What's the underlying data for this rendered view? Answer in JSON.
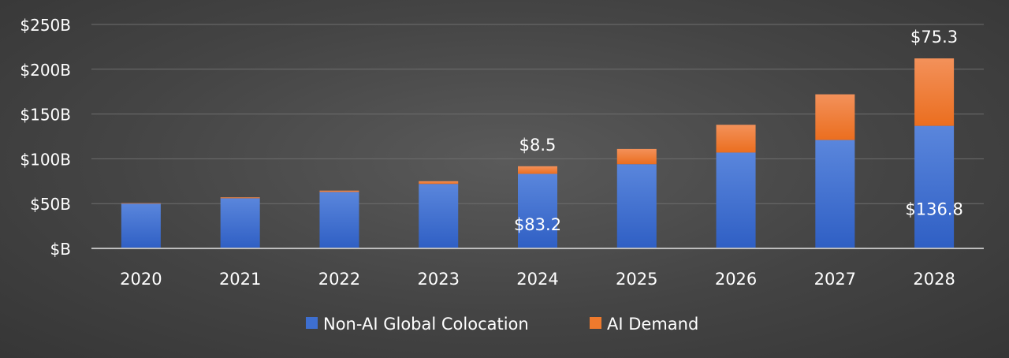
{
  "chart_data": {
    "type": "bar",
    "stacked": true,
    "categories": [
      "2020",
      "2021",
      "2022",
      "2023",
      "2024",
      "2025",
      "2026",
      "2027",
      "2028"
    ],
    "series": [
      {
        "name": "Non-AI Global Colocation",
        "color": "#3e6fd0",
        "values": [
          50,
          56,
          63,
          72,
          83.2,
          94,
          107,
          121,
          136.8
        ]
      },
      {
        "name": "AI Demand",
        "color": "#ef7a2d",
        "values": [
          0.5,
          1,
          1.5,
          3,
          8.5,
          17,
          31,
          51,
          75.3
        ]
      }
    ],
    "ylim": [
      0,
      250
    ],
    "yticks": [
      0,
      50,
      100,
      150,
      200,
      250
    ],
    "ytick_labels": [
      "$B",
      "$50B",
      "$100B",
      "$150B",
      "$200B",
      "$250B"
    ],
    "grid": true,
    "legend_position": "bottom",
    "data_labels": [
      {
        "category": "2024",
        "series": "AI Demand",
        "text": "$8.5",
        "value": 8.5
      },
      {
        "category": "2024",
        "series": "Non-AI Global Colocation",
        "text": "$83.2",
        "value": 83.2
      },
      {
        "category": "2028",
        "series": "AI Demand",
        "text": "$75.3",
        "value": 75.3
      },
      {
        "category": "2028",
        "series": "Non-AI Global Colocation",
        "text": "$136.8",
        "value": 136.8
      }
    ]
  }
}
